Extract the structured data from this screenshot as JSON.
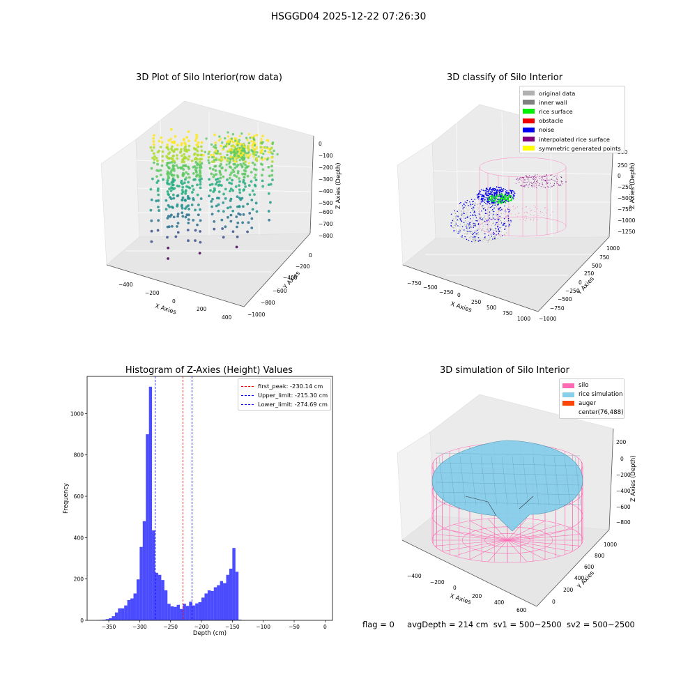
{
  "figure": {
    "suptitle": "HSGGD04 2025-12-22 07:26:30",
    "footer": {
      "flag": "flag = 0",
      "avg_depth": "avgDepth = 214 cm",
      "sv1": "sv1 = 500~2500",
      "sv2": "sv2 = 500~2500"
    }
  },
  "chart_data": [
    {
      "type": "scatter",
      "title": "3D Plot of Silo Interior(row data)",
      "xlabel": "X Axies",
      "ylabel": "Y Axies",
      "zlabel": "Z Axies (Depth)",
      "x_ticks": [
        "−400",
        "−200",
        "0",
        "200",
        "400"
      ],
      "y_ticks": [
        "0",
        "−200",
        "−400",
        "−600",
        "−800",
        "−1000"
      ],
      "z_ticks": [
        "0",
        "−100",
        "−200",
        "−300",
        "−400",
        "−500",
        "−600",
        "−700",
        "−800"
      ],
      "colormap": "viridis",
      "grid": true
    },
    {
      "type": "scatter",
      "title": "3D classify of Silo Interior",
      "xlabel": "X Axies",
      "ylabel": "Y Axies",
      "zlabel": "Z Axies (Depth)",
      "x_ticks": [
        "−750",
        "−500",
        "−250",
        "0",
        "250",
        "500",
        "750",
        "1000"
      ],
      "y_ticks": [
        "1000",
        "750",
        "500",
        "250",
        "0",
        "−250",
        "−500",
        "−750",
        "−1000"
      ],
      "z_ticks": [
        "500",
        "250",
        "0",
        "−250",
        "−500",
        "−750",
        "−1000",
        "−1250"
      ],
      "legend_position": "top-right",
      "legend": [
        {
          "label": "original data",
          "color": "#b0b0b0"
        },
        {
          "label": "inner wall",
          "color": "#808080"
        },
        {
          "label": "rice surface",
          "color": "#00ee00"
        },
        {
          "label": "obstacle",
          "color": "#ee0000"
        },
        {
          "label": "noise",
          "color": "#0000ee"
        },
        {
          "label": "interpolated rice surface",
          "color": "#800080"
        },
        {
          "label": "symmetric generated points",
          "color": "#ffff00"
        }
      ],
      "grid": true
    },
    {
      "type": "bar",
      "title": "Histogram of Z-Axies (Height) Values",
      "xlabel": "Depth (cm)",
      "ylabel": "Frequency",
      "xlim": [
        -385,
        12
      ],
      "ylim": [
        0,
        1180
      ],
      "x_ticks": [
        -350,
        -300,
        -250,
        -200,
        -150,
        -100,
        -50,
        0
      ],
      "y_ticks": [
        0,
        200,
        400,
        600,
        800,
        1000
      ],
      "bar_color": "#0000ff",
      "bin_start": -370,
      "bin_width": 5,
      "values": [
        1,
        2,
        3,
        6,
        10,
        20,
        38,
        58,
        58,
        72,
        98,
        106,
        130,
        198,
        355,
        480,
        900,
        1130,
        435,
        230,
        220,
        195,
        145,
        80,
        68,
        65,
        75,
        55,
        80,
        70,
        90,
        72,
        82,
        88,
        110,
        130,
        145,
        142,
        160,
        170,
        190,
        180,
        220,
        250,
        350,
        235,
        3
      ],
      "vlines": [
        {
          "value": -230.14,
          "label": "first_peak: -230.14 cm",
          "color": "#ff0000"
        },
        {
          "value": -215.3,
          "label": "Upper_limit: -215.30 cm",
          "color": "#0000ff"
        },
        {
          "value": -274.69,
          "label": "Lower_limit: -274.69 cm",
          "color": "#0000ff"
        }
      ],
      "legend_position": "top-right"
    },
    {
      "type": "surface",
      "title": "3D simulation of Silo Interior",
      "xlabel": "X Axies",
      "ylabel": "Y Axies",
      "zlabel": "Z Axies (Depth)",
      "x_ticks": [
        "−400",
        "−200",
        "0",
        "200",
        "400",
        "600"
      ],
      "y_ticks": [
        "1000",
        "800",
        "600",
        "400",
        "200",
        "0"
      ],
      "z_ticks": [
        "200",
        "0",
        "−200",
        "−400",
        "−600",
        "−800"
      ],
      "legend_position": "top-right",
      "legend": [
        {
          "label": "silo",
          "color": "#ff69b4"
        },
        {
          "label": "rice simulation",
          "color": "#87ceeb"
        },
        {
          "label": "auger",
          "color": "#ff4500"
        },
        {
          "label": "center(76,488)",
          "color": ""
        }
      ],
      "grid": true
    }
  ]
}
